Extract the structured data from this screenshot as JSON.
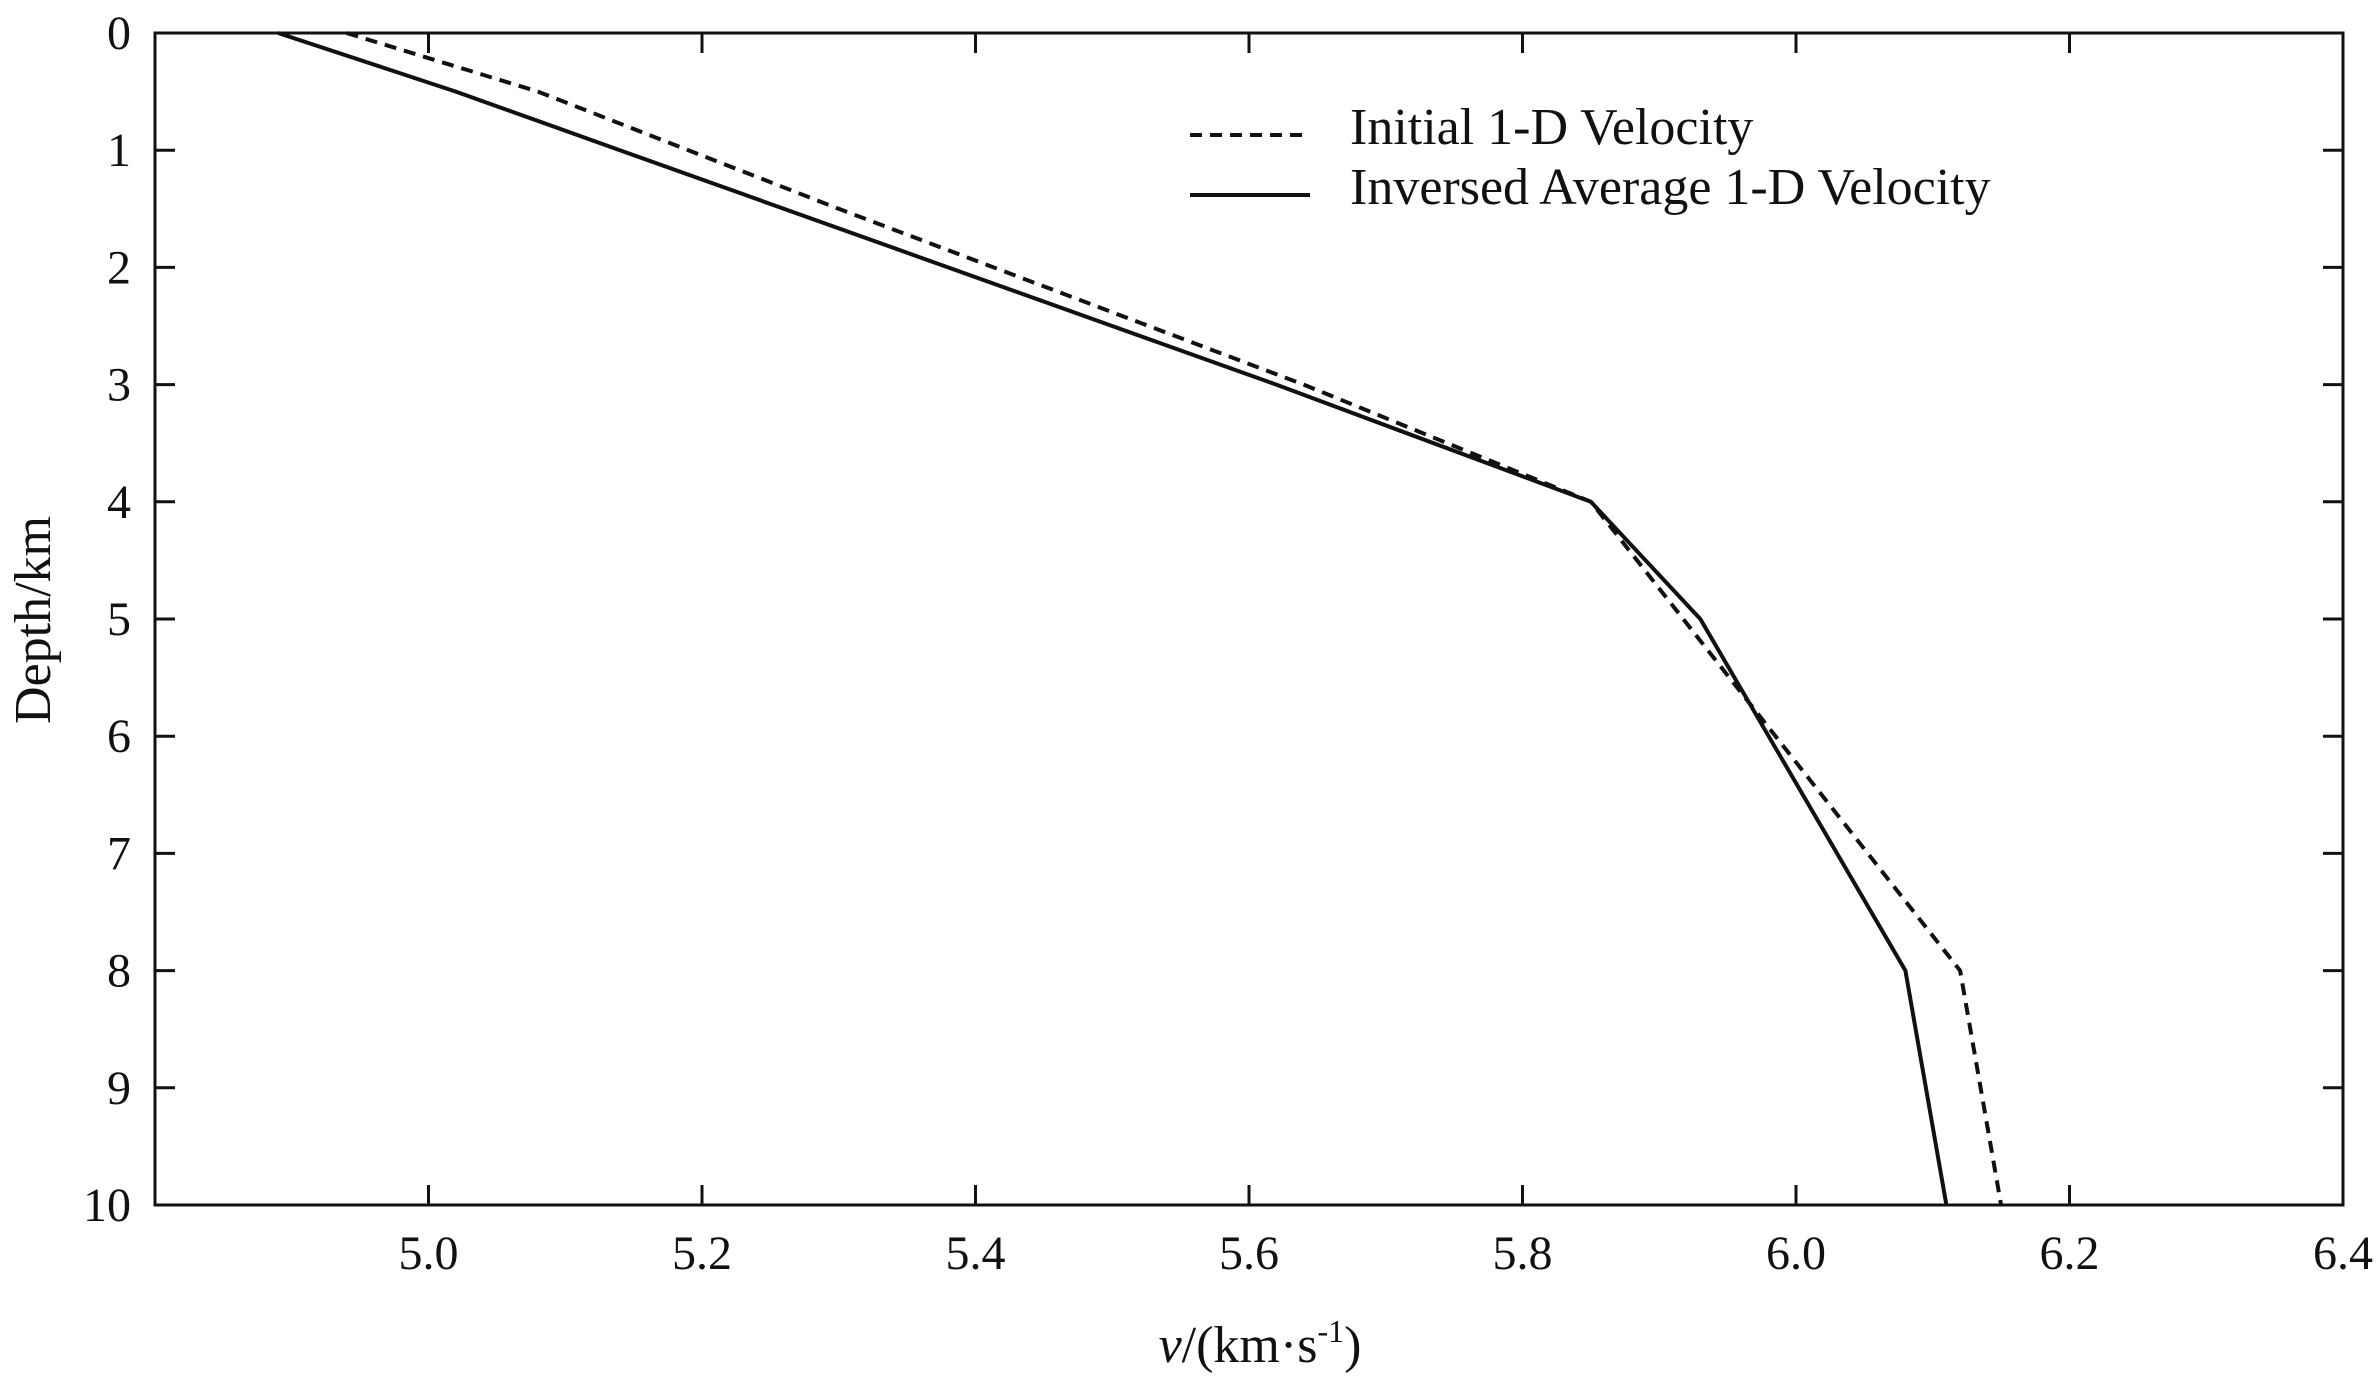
{
  "chart_data": {
    "type": "line",
    "title": "",
    "xlabel": {
      "var": "v",
      "unit_prefix": "/(km·s",
      "exponent": "-1",
      "unit_suffix": ")"
    },
    "ylabel": "Depth/km",
    "xlim": [
      4.8,
      6.4
    ],
    "ylim": [
      0,
      10
    ],
    "y_inverted": true,
    "xticks": [
      "5.0",
      "5.2",
      "5.4",
      "5.6",
      "5.8",
      "6.0",
      "6.2",
      "6.4"
    ],
    "xtick_values": [
      5.0,
      5.2,
      5.4,
      5.6,
      5.8,
      6.0,
      6.2,
      6.4
    ],
    "yticks": [
      "0",
      "1",
      "2",
      "3",
      "4",
      "5",
      "6",
      "7",
      "8",
      "9",
      "10"
    ],
    "ytick_values": [
      0,
      1,
      2,
      3,
      4,
      5,
      6,
      7,
      8,
      9,
      10
    ],
    "grid": false,
    "legend_position": "top-right",
    "series": [
      {
        "name": "Initial 1-D Velocity",
        "style": "dashed",
        "x": [
          4.94,
          5.08,
          5.3,
          5.64,
          5.85,
          6.12,
          6.15
        ],
        "y": [
          0,
          0.5,
          1.5,
          3,
          4,
          8,
          10
        ]
      },
      {
        "name": "Inversed Average 1-D Velocity",
        "style": "solid",
        "x": [
          4.89,
          5.02,
          5.14,
          5.62,
          5.85,
          5.93,
          6.08,
          6.11
        ],
        "y": [
          0,
          0.5,
          1,
          3,
          4,
          5,
          8,
          10
        ]
      }
    ]
  }
}
